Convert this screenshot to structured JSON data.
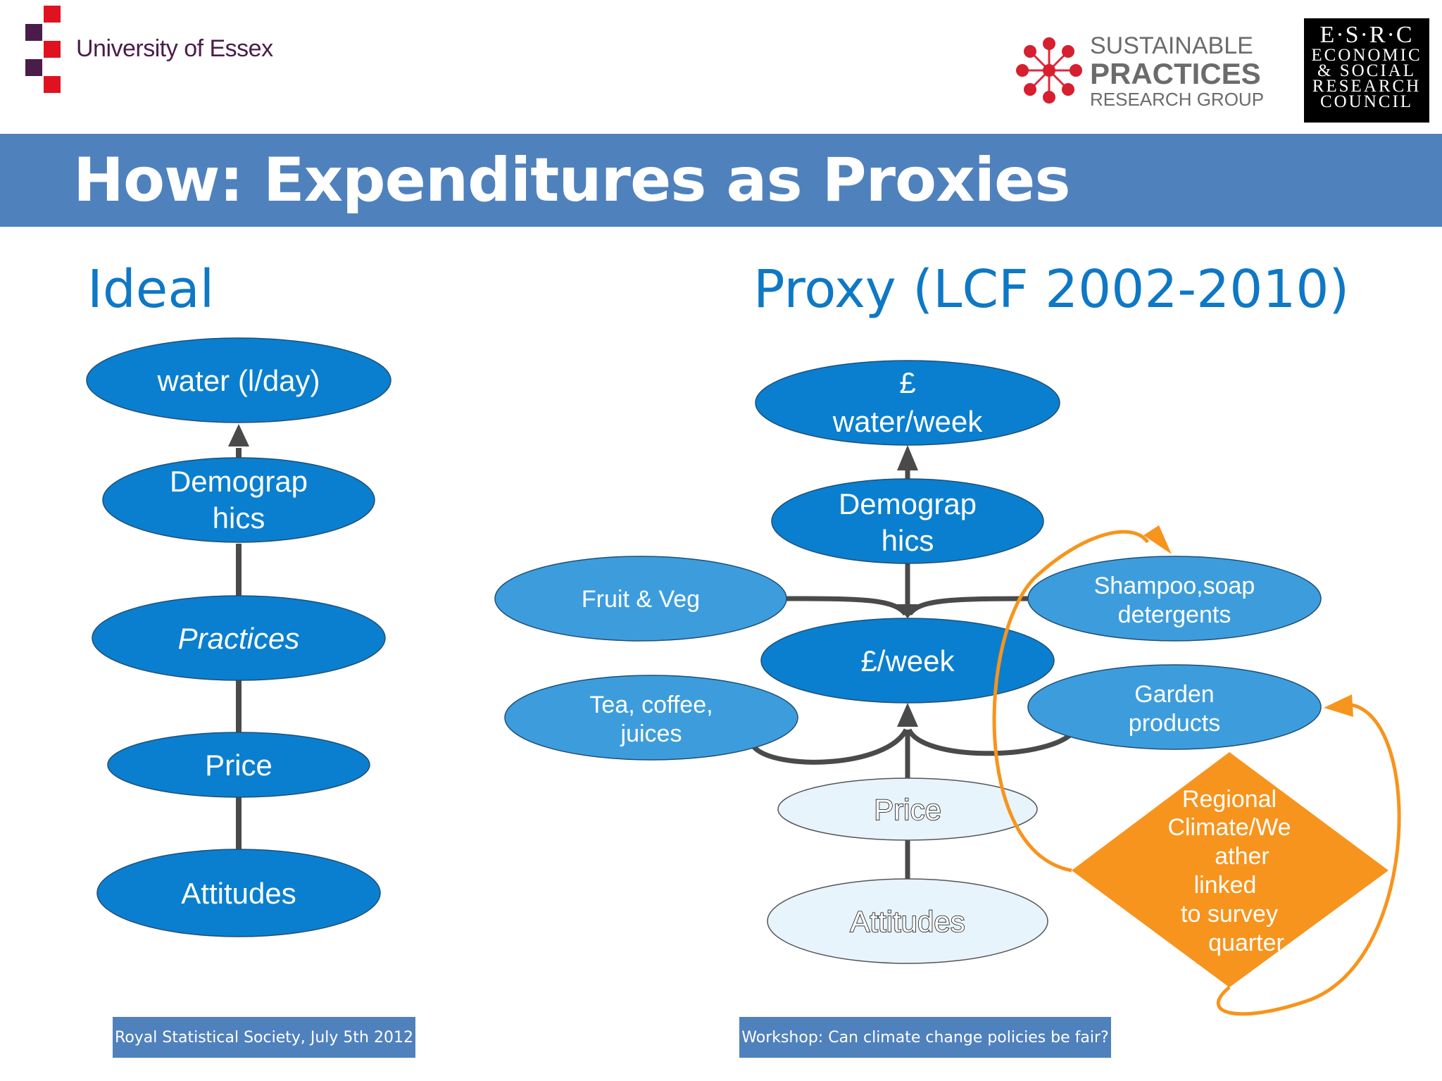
{
  "header": {
    "university": "University of Essex",
    "spr_line1": "SUSTAINABLE",
    "spr_line2": "PRACTICES",
    "spr_line3": "RESEARCH GROUP",
    "esrc_top": "E·S·R·C",
    "esrc_line1": "ECONOMIC",
    "esrc_line2": "& SOCIAL",
    "esrc_line3": "RESEARCH",
    "esrc_line4": "COUNCIL"
  },
  "title": "How: Expenditures as Proxies",
  "ideal": {
    "heading": "Ideal",
    "nodes": {
      "water": "water (l/day)",
      "demo1": "Demograp",
      "demo2": "hics",
      "practices": "Practices",
      "price": "Price",
      "attitudes": "Attitudes"
    }
  },
  "proxy": {
    "heading": "Proxy (LCF 2002-2010)",
    "nodes": {
      "water1": "£",
      "water2": "water/week",
      "demo1": "Demograp",
      "demo2": "hics",
      "perweek": "£/week",
      "fruit": "Fruit & Veg",
      "tea1": "Tea, coffee,",
      "tea2": "juices",
      "shampoo1": "Shampoo,soap",
      "shampoo2": "detergents",
      "garden1": "Garden",
      "garden2": "products",
      "price": "Price",
      "attitudes": "Attitudes",
      "regional": [
        "Regional",
        "Climate/We",
        "ather",
        "linked",
        "to survey",
        "quarter"
      ]
    }
  },
  "footer": {
    "left": "Royal Statistical Society, July 5th 2012",
    "right": "Workshop: Can climate change policies be fair?"
  },
  "colors": {
    "dark_node": "#0a7fcf",
    "light_node": "#3d9ddc",
    "pale_node": "#e8f4fc",
    "orange": "#f7941d",
    "title_bar": "#4f81bd",
    "heading_blue": "#0e78c5",
    "connector": "#4a4a4a"
  }
}
